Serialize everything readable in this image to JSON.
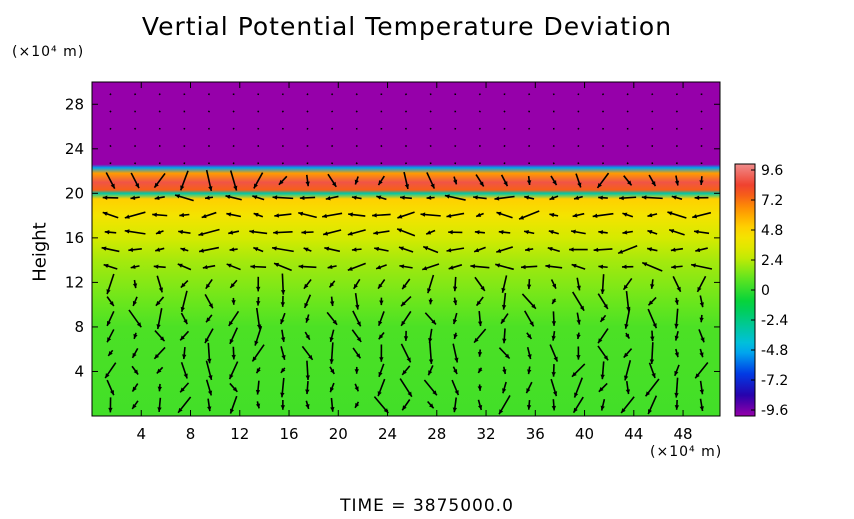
{
  "chart_data": {
    "type": "heatmap",
    "title": "Vertial Potential Temperature Deviation",
    "ylabel": "Height",
    "y_unit": "(×10⁴ m)",
    "x_unit": "(×10⁴ m)",
    "xlim": [
      0,
      51
    ],
    "ylim": [
      0,
      30
    ],
    "x_ticks": [
      "4",
      "8",
      "12",
      "16",
      "20",
      "24",
      "28",
      "32",
      "36",
      "40",
      "44",
      "48"
    ],
    "y_ticks": [
      "4",
      "8",
      "12",
      "16",
      "20",
      "24",
      "28"
    ],
    "colorbar": {
      "range": [
        -9.6,
        9.6
      ],
      "tick_labels": [
        "9.6",
        "7.2",
        "4.8",
        "2.4",
        "0",
        "-2.4",
        "-4.8",
        "-7.2",
        "-9.6"
      ]
    },
    "vertical_profile": [
      {
        "height": 0,
        "value": 0.3
      },
      {
        "height": 8,
        "value": 0.5
      },
      {
        "height": 10,
        "value": 1.0
      },
      {
        "height": 12,
        "value": 1.5
      },
      {
        "height": 14,
        "value": 2.0
      },
      {
        "height": 16,
        "value": 2.8
      },
      {
        "height": 18,
        "value": 4.0
      },
      {
        "height": 19.5,
        "value": 4.8
      },
      {
        "height": 20,
        "value": -3.0
      },
      {
        "height": 20.3,
        "value": 7.2
      },
      {
        "height": 21,
        "value": 8.4
      },
      {
        "height": 21.8,
        "value": 6.0
      },
      {
        "height": 22.3,
        "value": -4.8
      },
      {
        "height": 22.6,
        "value": -9.6
      },
      {
        "height": 30,
        "value": -9.6
      }
    ],
    "overlay": "wind vectors",
    "footer": "TIME  =  3875000.0"
  }
}
